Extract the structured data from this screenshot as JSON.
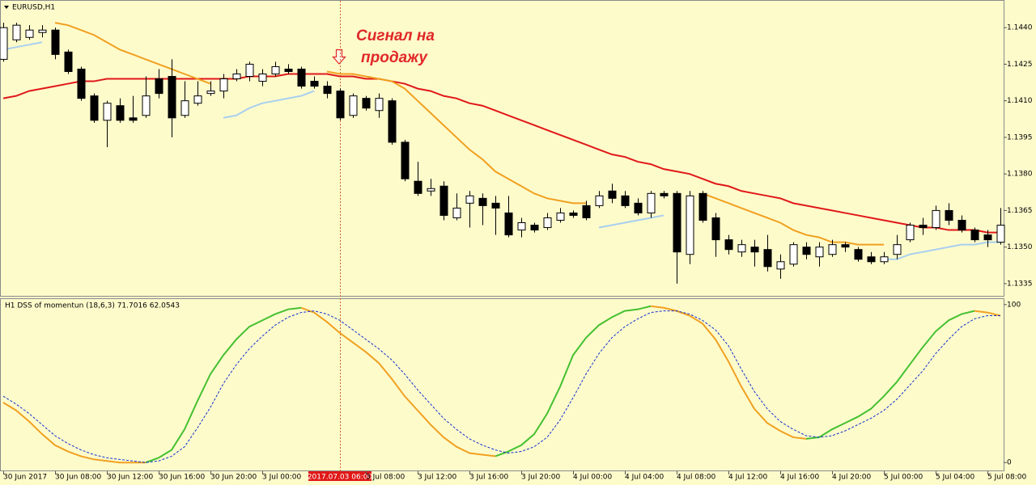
{
  "chart_data": [
    {
      "type": "candlestick",
      "title": "EURUSD,H1",
      "categories": [
        "30 Jun 2017",
        null,
        null,
        null,
        "30 Jun 08:00",
        null,
        null,
        null,
        "30 Jun 12:00",
        null,
        null,
        null,
        "30 Jun 16:00",
        null,
        null,
        null,
        "30 Jun 20:00",
        null,
        null,
        null,
        "3 Jul 00:00",
        null,
        null,
        null,
        null,
        null,
        "2017.07.03 06:00",
        null,
        "3 Jul 08:00",
        null,
        null,
        null,
        "3 Jul 12:00",
        null,
        null,
        null,
        "3 Jul 16:00",
        null,
        null,
        null,
        "3 Jul 20:00",
        null,
        null,
        null,
        "4 Jul 00:00",
        null,
        null,
        null,
        "4 Jul 04:00",
        null,
        null,
        null,
        "4 Jul 08:00",
        null,
        null,
        null,
        "4 Jul 12:00",
        null,
        null,
        null,
        "4 Jul 16:00",
        null,
        null,
        null,
        "4 Jul 20:00",
        null,
        null,
        null,
        "5 Jul 00:00",
        null,
        null,
        null,
        "5 Jul 04:00",
        null,
        null,
        null,
        "5 Jul 08:00",
        null
      ],
      "open": [
        1.1427,
        1.1435,
        1.1436,
        1.1438,
        1.1439,
        1.143,
        1.1423,
        1.1412,
        1.1402,
        1.1408,
        1.1403,
        1.1404,
        1.1419,
        1.142,
        1.1404,
        1.1409,
        1.1413,
        1.1414,
        1.1419,
        1.142,
        1.1418,
        1.1421,
        1.1423,
        1.1423,
        1.1418,
        1.1416,
        1.1414,
        1.1404,
        1.1411,
        1.1406,
        1.141,
        1.1393,
        1.1377,
        1.1373,
        1.1375,
        1.1362,
        1.1368,
        1.137,
        1.1368,
        1.1364,
        1.1357,
        1.1359,
        1.1358,
        1.1361,
        1.1364,
        1.1367,
        1.1367,
        1.1373,
        1.1371,
        1.1368,
        1.1364,
        1.1372,
        1.1372,
        1.1347,
        1.1372,
        1.1362,
        1.1353,
        1.1348,
        1.135,
        1.1349,
        1.1341,
        1.1343,
        1.135,
        1.1346,
        1.1347,
        1.1351,
        1.1349,
        1.1346,
        1.1344,
        1.1347,
        1.1353,
        1.1359,
        1.1358,
        1.1365,
        1.1361,
        1.1357,
        1.1355,
        1.1352
      ],
      "high": [
        1.1442,
        1.1442,
        1.1441,
        1.1441,
        1.144,
        1.1431,
        1.1424,
        1.1413,
        1.141,
        1.1411,
        1.1412,
        1.142,
        1.1423,
        1.1427,
        1.1418,
        1.1418,
        1.1418,
        1.1421,
        1.1423,
        1.1426,
        1.1423,
        1.1426,
        1.1425,
        1.1424,
        1.142,
        1.1418,
        1.1415,
        1.1413,
        1.1412,
        1.1413,
        1.1411,
        1.1394,
        1.1385,
        1.1378,
        1.1377,
        1.1372,
        1.1373,
        1.1372,
        1.1371,
        1.1371,
        1.1362,
        1.136,
        1.1364,
        1.1366,
        1.1365,
        1.1369,
        1.1373,
        1.1376,
        1.1373,
        1.137,
        1.1373,
        1.1373,
        1.1373,
        1.1373,
        1.1373,
        1.1364,
        1.1355,
        1.1353,
        1.1353,
        1.1355,
        1.1347,
        1.1352,
        1.1352,
        1.1352,
        1.1353,
        1.1352,
        1.135,
        1.1348,
        1.1348,
        1.1355,
        1.136,
        1.1362,
        1.1367,
        1.1368,
        1.1363,
        1.1358,
        1.1357,
        1.1366
      ],
      "low": [
        1.1426,
        1.1434,
        1.1435,
        1.1436,
        1.1427,
        1.1421,
        1.141,
        1.1401,
        1.1391,
        1.1401,
        1.1401,
        1.1403,
        1.1411,
        1.1395,
        1.1403,
        1.1408,
        1.1412,
        1.1411,
        1.1418,
        1.1418,
        1.1416,
        1.142,
        1.1421,
        1.1415,
        1.1415,
        1.1411,
        1.1402,
        1.1403,
        1.1406,
        1.1403,
        1.1392,
        1.1377,
        1.1371,
        1.1371,
        1.1361,
        1.1361,
        1.1358,
        1.1359,
        1.1355,
        1.1354,
        1.1354,
        1.1356,
        1.1357,
        1.136,
        1.1362,
        1.1361,
        1.1366,
        1.1368,
        1.1366,
        1.1363,
        1.1362,
        1.137,
        1.1335,
        1.1343,
        1.136,
        1.1346,
        1.1347,
        1.1346,
        1.1342,
        1.134,
        1.1337,
        1.1342,
        1.1345,
        1.1342,
        1.1346,
        1.1348,
        1.1344,
        1.1343,
        1.1343,
        1.1345,
        1.1352,
        1.1355,
        1.1357,
        1.1359,
        1.1356,
        1.1352,
        1.135,
        1.1351
      ],
      "close": [
        1.144,
        1.1441,
        1.1439,
        1.1439,
        1.1429,
        1.1422,
        1.1411,
        1.1402,
        1.1409,
        1.1402,
        1.1402,
        1.1412,
        1.1413,
        1.1403,
        1.141,
        1.1412,
        1.1414,
        1.1419,
        1.1421,
        1.1425,
        1.1421,
        1.1424,
        1.1422,
        1.1416,
        1.1416,
        1.1413,
        1.1403,
        1.1412,
        1.1407,
        1.1411,
        1.1393,
        1.1378,
        1.1372,
        1.1374,
        1.1363,
        1.1366,
        1.1371,
        1.1367,
        1.1366,
        1.1355,
        1.136,
        1.1357,
        1.1362,
        1.1364,
        1.1363,
        1.1362,
        1.1371,
        1.137,
        1.1367,
        1.1364,
        1.1372,
        1.1371,
        1.1348,
        1.1371,
        1.1361,
        1.1353,
        1.1349,
        1.1351,
        1.1348,
        1.1342,
        1.1344,
        1.1351,
        1.1347,
        1.135,
        1.1351,
        1.135,
        1.1345,
        1.1344,
        1.1346,
        1.1351,
        1.1359,
        1.1358,
        1.1365,
        1.1361,
        1.1357,
        1.1353,
        1.1353,
        1.1359
      ],
      "up_color": "#ffffff",
      "down_color": "#000000",
      "lines": [
        {
          "color": "#e01818",
          "values": [
            1.1411,
            1.1412,
            1.1414,
            1.1415,
            1.1416,
            1.1417,
            1.1418,
            1.1418,
            1.1419,
            1.1419,
            1.1419,
            1.1419,
            1.1419,
            1.1419,
            1.1419,
            1.1419,
            1.1419,
            1.1419,
            1.1419,
            1.142,
            1.142,
            1.142,
            1.1421,
            1.1421,
            1.1421,
            1.1421,
            1.142,
            1.142,
            1.1419,
            1.1419,
            1.1418,
            1.1417,
            1.1415,
            1.1414,
            1.1412,
            1.1411,
            1.1409,
            1.1408,
            1.1406,
            1.1404,
            1.1402,
            1.14,
            1.1398,
            1.1396,
            1.1394,
            1.1392,
            1.139,
            1.1388,
            1.1387,
            1.1385,
            1.1384,
            1.1382,
            1.1381,
            1.138,
            1.1378,
            1.1376,
            1.1375,
            1.1373,
            1.1372,
            1.1371,
            1.137,
            1.1368,
            1.1367,
            1.1366,
            1.1365,
            1.1364,
            1.1363,
            1.1362,
            1.1361,
            1.136,
            1.1359,
            1.1358,
            1.1358,
            1.1357,
            1.1357,
            1.1357,
            1.1356,
            1.1356
          ]
        },
        {
          "color": "#f0a020",
          "values": [
            null,
            null,
            null,
            null,
            1.1442,
            1.1441,
            1.1439,
            1.1437,
            1.1434,
            1.1431,
            1.1429,
            1.1427,
            1.1425,
            1.1423,
            1.1421,
            1.1419,
            1.1417,
            null,
            null,
            null,
            null,
            null,
            null,
            null,
            null,
            1.1422,
            1.1421,
            1.1421,
            1.142,
            1.1419,
            1.1418,
            1.1415,
            1.141,
            1.1405,
            1.14,
            1.1395,
            1.139,
            1.1386,
            1.1381,
            1.1378,
            1.1375,
            1.1372,
            1.137,
            1.1369,
            1.1368,
            1.1368,
            null,
            null,
            null,
            null,
            null,
            null,
            null,
            null,
            1.1372,
            1.137,
            1.1368,
            1.1366,
            1.1364,
            1.1362,
            1.136,
            1.1357,
            1.1355,
            1.1354,
            1.1352,
            1.1352,
            1.1351,
            1.1351,
            1.1351,
            null,
            null,
            null,
            null,
            null,
            null,
            null,
            null,
            null
          ]
        },
        {
          "color": "#a8cff0",
          "values": [
            1.1431,
            1.1432,
            1.1433,
            1.1434,
            null,
            null,
            null,
            null,
            null,
            null,
            null,
            null,
            null,
            null,
            null,
            null,
            null,
            1.1403,
            1.1404,
            1.1407,
            1.1409,
            1.141,
            1.1411,
            1.1412,
            1.1414,
            null,
            null,
            null,
            null,
            null,
            null,
            null,
            null,
            null,
            null,
            null,
            null,
            null,
            null,
            null,
            null,
            null,
            null,
            null,
            null,
            null,
            1.1358,
            1.1359,
            1.136,
            1.1361,
            1.1362,
            1.1363,
            null,
            null,
            null,
            null,
            null,
            null,
            null,
            null,
            null,
            null,
            null,
            null,
            null,
            null,
            null,
            null,
            1.1345,
            1.1345,
            1.1347,
            1.1348,
            1.1349,
            1.135,
            1.1351,
            1.1351,
            1.1352,
            1.1352
          ]
        }
      ],
      "ylim": [
        1.133,
        1.1451
      ],
      "yticks": [
        {
          "value": 1.144,
          "label": "1.1440"
        },
        {
          "value": 1.1425,
          "label": "1.1425"
        },
        {
          "value": 1.141,
          "label": "1.1410"
        },
        {
          "value": 1.1395,
          "label": "1.1395"
        },
        {
          "value": 1.138,
          "label": "1.1380"
        },
        {
          "value": 1.1365,
          "label": "1.1365"
        },
        {
          "value": 1.135,
          "label": "1.1350"
        },
        {
          "value": 1.1335,
          "label": "1.1335"
        }
      ],
      "crosshair": 26,
      "annotation": [
        "Сигнал на",
        "продажу"
      ]
    },
    {
      "type": "line",
      "title": "H1 DSS of momentun (18,6,3) 71.7016 62.0543",
      "series": [
        {
          "color": "#44c030",
          "values": [
            null,
            null,
            null,
            null,
            null,
            null,
            null,
            null,
            null,
            null,
            null,
            0,
            3,
            8,
            21,
            39,
            56,
            68,
            78,
            86,
            90,
            94,
            97,
            98,
            null,
            null,
            null,
            null,
            null,
            null,
            null,
            null,
            null,
            null,
            null,
            null,
            null,
            null,
            4,
            7,
            11,
            18,
            31,
            48,
            68,
            79,
            87,
            92,
            96,
            97,
            99,
            null,
            null,
            null,
            null,
            null,
            null,
            null,
            null,
            null,
            null,
            null,
            15,
            16,
            21,
            25,
            29,
            34,
            42,
            51,
            62,
            73,
            83,
            90,
            94,
            96,
            null,
            null
          ]
        },
        {
          "color": "#f0a020",
          "values": [
            38,
            33,
            26,
            18,
            11,
            7,
            4,
            2,
            1,
            0,
            0,
            0,
            null,
            null,
            null,
            null,
            null,
            null,
            null,
            null,
            null,
            null,
            null,
            98,
            95,
            89,
            82,
            76,
            70,
            63,
            53,
            42,
            33,
            24,
            16,
            10,
            6,
            5,
            4,
            null,
            null,
            null,
            null,
            null,
            null,
            null,
            null,
            null,
            null,
            null,
            99,
            98,
            96,
            93,
            88,
            78,
            64,
            48,
            34,
            25,
            20,
            16,
            15,
            null,
            null,
            null,
            null,
            null,
            null,
            null,
            null,
            null,
            null,
            null,
            null,
            96,
            95,
            93
          ]
        },
        {
          "color": "#1030d0",
          "dashed": true,
          "values": [
            42,
            37,
            31,
            24,
            17,
            12,
            8,
            5,
            3,
            2,
            1,
            0,
            1,
            4,
            10,
            22,
            35,
            50,
            62,
            72,
            80,
            87,
            92,
            95,
            96,
            94,
            90,
            84,
            78,
            72,
            65,
            56,
            46,
            37,
            28,
            21,
            15,
            11,
            8,
            6,
            7,
            10,
            16,
            27,
            41,
            56,
            69,
            79,
            86,
            91,
            95,
            96,
            96,
            94,
            90,
            84,
            74,
            59,
            45,
            34,
            26,
            21,
            17,
            16,
            17,
            20,
            24,
            28,
            33,
            40,
            49,
            58,
            69,
            78,
            86,
            91,
            93,
            93
          ]
        }
      ],
      "ylim": [
        -5,
        104
      ],
      "yticks": [
        0,
        100
      ]
    }
  ]
}
